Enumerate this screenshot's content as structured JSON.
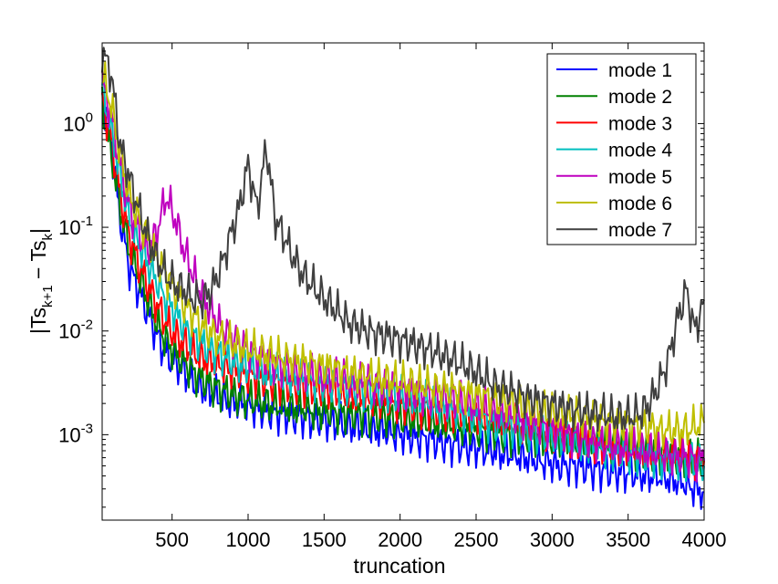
{
  "chart_data": {
    "type": "line",
    "title": "",
    "xlabel": "truncation",
    "ylabel_parts": {
      "main": "|Ts",
      "sub1": "k+1",
      "mid": " − Ts",
      "sub2": "k",
      "end": "|"
    },
    "xlim": [
      40,
      4000
    ],
    "ylim": [
      0.00015,
      6
    ],
    "yscale": "log",
    "grid": false,
    "legend_position": "top-right",
    "x_ticks": [
      500,
      1000,
      1500,
      2000,
      2500,
      3000,
      3500,
      4000
    ],
    "y_ticks": [
      {
        "value": 0.001,
        "base": "10",
        "exp": "-3"
      },
      {
        "value": 0.01,
        "base": "10",
        "exp": "-2"
      },
      {
        "value": 0.1,
        "base": "10",
        "exp": "-1"
      },
      {
        "value": 1,
        "base": "10",
        "exp": "0"
      }
    ],
    "x": [
      40,
      100,
      160,
      220,
      280,
      340,
      400,
      460,
      520,
      580,
      640,
      700,
      760,
      820,
      880,
      940,
      1000,
      1060,
      1120,
      1180,
      1240,
      1300,
      1360,
      1420,
      1480,
      1540,
      1600,
      1660,
      1720,
      1780,
      1840,
      1900,
      1960,
      2020,
      2080,
      2140,
      2200,
      2260,
      2320,
      2380,
      2440,
      2500,
      2560,
      2620,
      2680,
      2740,
      2800,
      2860,
      2920,
      2980,
      3040,
      3100,
      3160,
      3220,
      3280,
      3340,
      3400,
      3460,
      3520,
      3580,
      3640,
      3700,
      3760,
      3820,
      3880,
      3940,
      4000
    ],
    "series": [
      {
        "name": "mode 1",
        "color": "#0000ff",
        "values": [
          2,
          0.6,
          0.12,
          0.04,
          0.025,
          0.015,
          0.009,
          0.006,
          0.005,
          0.004,
          0.0032,
          0.0028,
          0.0025,
          0.0022,
          0.0021,
          0.002,
          0.0019,
          0.0018,
          0.0017,
          0.0016,
          0.0016,
          0.0015,
          0.0015,
          0.0014,
          0.0014,
          0.0013,
          0.0013,
          0.0012,
          0.0012,
          0.0011,
          0.0011,
          0.0011,
          0.001,
          0.001,
          0.00095,
          0.0009,
          0.0009,
          0.00085,
          0.0008,
          0.0008,
          0.00075,
          0.00075,
          0.0007,
          0.0007,
          0.00065,
          0.00065,
          0.0006,
          0.0006,
          0.00055,
          0.00055,
          0.0005,
          0.0005,
          0.0005,
          0.00048,
          0.00046,
          0.00045,
          0.00044,
          0.00043,
          0.00042,
          0.00041,
          0.0004,
          0.0004,
          0.00038,
          0.00036,
          0.00034,
          0.0003,
          0.00028
        ]
      },
      {
        "name": "mode 2",
        "color": "#008000",
        "values": [
          1.5,
          0.5,
          0.15,
          0.06,
          0.035,
          0.02,
          0.012,
          0.008,
          0.006,
          0.005,
          0.004,
          0.0034,
          0.003,
          0.0027,
          0.0025,
          0.0023,
          0.0022,
          0.0021,
          0.002,
          0.0019,
          0.0019,
          0.0018,
          0.0018,
          0.0017,
          0.0017,
          0.0017,
          0.0016,
          0.0016,
          0.0016,
          0.0015,
          0.0015,
          0.0015,
          0.0014,
          0.0014,
          0.0014,
          0.0013,
          0.0013,
          0.0013,
          0.0012,
          0.0012,
          0.0012,
          0.0011,
          0.0011,
          0.0011,
          0.001,
          0.001,
          0.001,
          0.001,
          0.00095,
          0.0009,
          0.0009,
          0.0009,
          0.00085,
          0.00085,
          0.0008,
          0.0008,
          0.0008,
          0.00075,
          0.00075,
          0.0007,
          0.0007,
          0.00068,
          0.00066,
          0.00064,
          0.00062,
          0.0006,
          0.00058
        ]
      },
      {
        "name": "mode 3",
        "color": "#ff0000",
        "values": [
          1.8,
          0.7,
          0.2,
          0.08,
          0.045,
          0.028,
          0.018,
          0.012,
          0.009,
          0.0075,
          0.0062,
          0.0055,
          0.005,
          0.0046,
          0.0043,
          0.004,
          0.0038,
          0.0036,
          0.0034,
          0.0032,
          0.0031,
          0.003,
          0.0029,
          0.0028,
          0.0027,
          0.0026,
          0.0025,
          0.0024,
          0.0023,
          0.0022,
          0.0022,
          0.0021,
          0.002,
          0.002,
          0.0019,
          0.0018,
          0.0018,
          0.0017,
          0.0017,
          0.0016,
          0.0016,
          0.0015,
          0.0014,
          0.0014,
          0.0013,
          0.0013,
          0.0012,
          0.0012,
          0.0011,
          0.0011,
          0.001,
          0.001,
          0.00095,
          0.0009,
          0.00085,
          0.0008,
          0.00078,
          0.00075,
          0.00072,
          0.0007,
          0.00068,
          0.00066,
          0.00064,
          0.00062,
          0.0006,
          0.00058,
          0.00056
        ]
      },
      {
        "name": "mode 4",
        "color": "#00bfbf",
        "values": [
          2.2,
          0.9,
          0.3,
          0.12,
          0.07,
          0.045,
          0.03,
          0.02,
          0.015,
          0.011,
          0.009,
          0.0075,
          0.0065,
          0.0058,
          0.0052,
          0.0048,
          0.0045,
          0.0042,
          0.004,
          0.0038,
          0.0036,
          0.0035,
          0.0034,
          0.0033,
          0.0032,
          0.0031,
          0.003,
          0.0029,
          0.0028,
          0.0027,
          0.0026,
          0.0025,
          0.0024,
          0.0023,
          0.0022,
          0.0021,
          0.002,
          0.0019,
          0.0018,
          0.0017,
          0.0016,
          0.0015,
          0.0014,
          0.0013,
          0.0012,
          0.0012,
          0.0011,
          0.001,
          0.001,
          0.00095,
          0.0009,
          0.00085,
          0.0008,
          0.00078,
          0.00075,
          0.00072,
          0.0007,
          0.00068,
          0.00066,
          0.00064,
          0.00062,
          0.0006,
          0.00058,
          0.00056,
          0.00054,
          0.00052,
          0.0005
        ]
      },
      {
        "name": "mode 5",
        "color": "#bf00bf",
        "values": [
          2.5,
          1.2,
          0.4,
          0.15,
          0.09,
          0.06,
          0.09,
          0.2,
          0.12,
          0.06,
          0.035,
          0.022,
          0.015,
          0.011,
          0.009,
          0.0075,
          0.0065,
          0.0058,
          0.0052,
          0.0048,
          0.0045,
          0.0042,
          0.004,
          0.0038,
          0.0036,
          0.0035,
          0.0034,
          0.0033,
          0.0032,
          0.0031,
          0.003,
          0.0029,
          0.0028,
          0.0027,
          0.0026,
          0.0025,
          0.0024,
          0.0023,
          0.0022,
          0.0021,
          0.002,
          0.0019,
          0.0018,
          0.0017,
          0.0016,
          0.0015,
          0.0014,
          0.0013,
          0.0012,
          0.0012,
          0.0011,
          0.001,
          0.00095,
          0.0009,
          0.00085,
          0.0008,
          0.00078,
          0.00075,
          0.00072,
          0.0007,
          0.00068,
          0.00066,
          0.00064,
          0.00062,
          0.0006,
          0.00058,
          0.00056
        ]
      },
      {
        "name": "mode 6",
        "color": "#bfbf00",
        "values": [
          3,
          1.5,
          0.5,
          0.2,
          0.12,
          0.08,
          0.05,
          0.035,
          0.025,
          0.018,
          0.014,
          0.011,
          0.0095,
          0.0085,
          0.0078,
          0.0072,
          0.0067,
          0.0063,
          0.006,
          0.0057,
          0.0054,
          0.0052,
          0.005,
          0.0048,
          0.0046,
          0.0044,
          0.0042,
          0.004,
          0.0038,
          0.0036,
          0.0035,
          0.0034,
          0.0033,
          0.0032,
          0.0031,
          0.003,
          0.0029,
          0.0028,
          0.0027,
          0.0026,
          0.0025,
          0.0024,
          0.0023,
          0.0022,
          0.0021,
          0.002,
          0.0019,
          0.0018,
          0.0017,
          0.0016,
          0.0016,
          0.0015,
          0.0015,
          0.0014,
          0.0014,
          0.0013,
          0.0013,
          0.0013,
          0.0012,
          0.0012,
          0.0012,
          0.0011,
          0.0011,
          0.0011,
          0.0011,
          0.0012,
          0.0013
        ]
      },
      {
        "name": "mode 7",
        "color": "#404040",
        "values": [
          5,
          3,
          0.6,
          0.3,
          0.15,
          0.08,
          0.05,
          0.035,
          0.028,
          0.025,
          0.02,
          0.02,
          0.025,
          0.04,
          0.08,
          0.15,
          0.4,
          0.15,
          0.6,
          0.12,
          0.08,
          0.05,
          0.035,
          0.028,
          0.022,
          0.018,
          0.015,
          0.012,
          0.011,
          0.01,
          0.0095,
          0.009,
          0.0085,
          0.008,
          0.0075,
          0.007,
          0.0065,
          0.006,
          0.0055,
          0.005,
          0.0045,
          0.004,
          0.0035,
          0.003,
          0.0028,
          0.0026,
          0.0024,
          0.0022,
          0.0021,
          0.002,
          0.0019,
          0.0018,
          0.0017,
          0.0017,
          0.0016,
          0.0016,
          0.0015,
          0.0015,
          0.0015,
          0.0016,
          0.002,
          0.003,
          0.005,
          0.012,
          0.025,
          0.01,
          0.02
        ]
      }
    ]
  }
}
